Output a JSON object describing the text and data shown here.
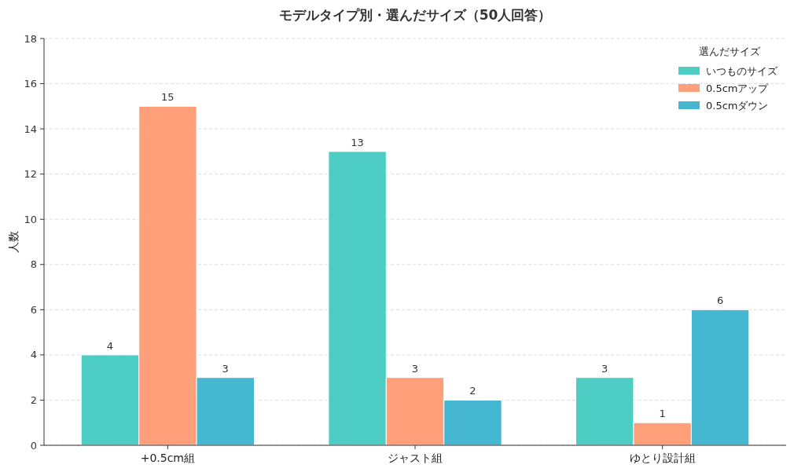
{
  "chart_data": {
    "type": "bar",
    "title": "モデルタイプ別・選んだサイズ（50人回答）",
    "ylabel": "人数",
    "legend_title": "選んだサイズ",
    "categories": [
      "+0.5cm組",
      "ジャスト組",
      "ゆとり設計組"
    ],
    "series": [
      {
        "name": "いつものサイズ",
        "color": "#4ecdc4",
        "values": [
          4,
          13,
          3
        ]
      },
      {
        "name": "0.5cmアップ",
        "color": "#ffa07a",
        "values": [
          15,
          3,
          1
        ]
      },
      {
        "name": "0.5cmダウン",
        "color": "#45b7d1",
        "values": [
          3,
          2,
          6
        ]
      }
    ],
    "ylim": [
      0,
      18
    ],
    "yticks": [
      0,
      2,
      4,
      6,
      8,
      10,
      12,
      14,
      16,
      18
    ],
    "grid": "y",
    "legend": "top right",
    "data_labels": true
  }
}
